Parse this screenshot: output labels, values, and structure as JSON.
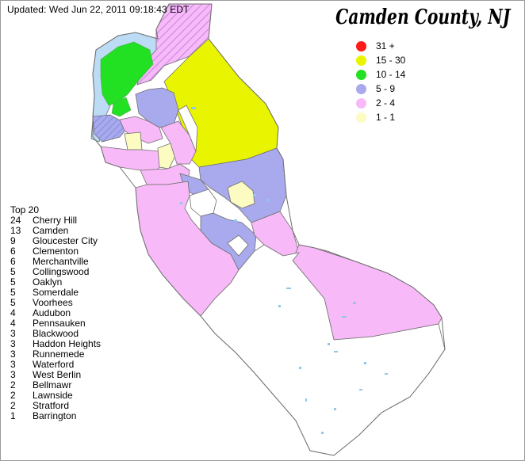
{
  "updated": "Updated: Wed Jun 22, 2011 09:18:43 EDT",
  "title": "Camden County, NJ",
  "legend": [
    {
      "label": "31 +",
      "color": "#ff1a1a"
    },
    {
      "label": "15 - 30",
      "color": "#e9f500"
    },
    {
      "label": "10 - 14",
      "color": "#22e022"
    },
    {
      "label": "5 - 9",
      "color": "#a9a9ee"
    },
    {
      "label": "2 - 4",
      "color": "#f7b9f7"
    },
    {
      "label": "1 - 1",
      "color": "#fbfbc2"
    }
  ],
  "top20": {
    "title": "Top 20",
    "items": [
      {
        "count": "24",
        "name": "Cherry Hill"
      },
      {
        "count": "13",
        "name": "Camden"
      },
      {
        "count": "9",
        "name": "Gloucester City"
      },
      {
        "count": "6",
        "name": "Clementon"
      },
      {
        "count": "6",
        "name": "Merchantville"
      },
      {
        "count": "5",
        "name": "Collingswood"
      },
      {
        "count": "5",
        "name": "Oaklyn"
      },
      {
        "count": "5",
        "name": "Somerdale"
      },
      {
        "count": "5",
        "name": "Voorhees"
      },
      {
        "count": "4",
        "name": "Audubon"
      },
      {
        "count": "4",
        "name": "Pennsauken"
      },
      {
        "count": "3",
        "name": "Blackwood"
      },
      {
        "count": "3",
        "name": "Haddon Heights"
      },
      {
        "count": "3",
        "name": "Runnemede"
      },
      {
        "count": "3",
        "name": "Waterford"
      },
      {
        "count": "3",
        "name": "West Berlin"
      },
      {
        "count": "2",
        "name": "Bellmawr"
      },
      {
        "count": "2",
        "name": "Lawnside"
      },
      {
        "count": "2",
        "name": "Stratford"
      },
      {
        "count": "1",
        "name": "Barrington"
      }
    ]
  },
  "colors": {
    "water": "#bcdcf5",
    "border": "#707070",
    "lake": "#8fc8e8"
  }
}
